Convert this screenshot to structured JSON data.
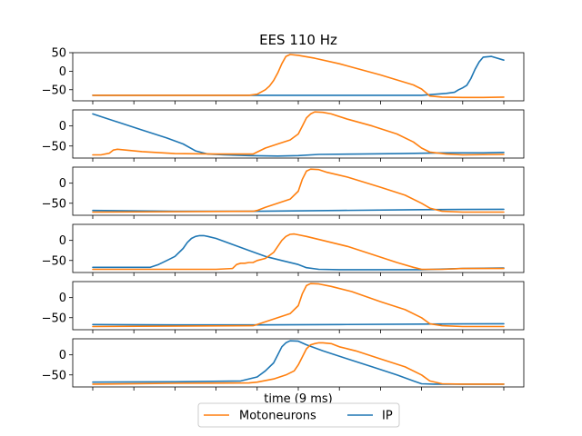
{
  "chart_data": {
    "type": "line",
    "title": "EES 110 Hz",
    "xlabel": "time (9 ms)",
    "ylabel": "",
    "grid": false,
    "legend": {
      "placement": "bottom-center",
      "columns": 2
    },
    "colors": {
      "Motoneurons": "#ff7f0e",
      "IP": "#1f77b4"
    },
    "xlim": [
      0,
      1
    ],
    "panels": [
      {
        "ylim": [
          -80,
          50
        ],
        "yticks": [
          50,
          0,
          -50
        ],
        "yticklabels": [
          "50",
          "0",
          "−50"
        ],
        "series": [
          {
            "name": "Motoneurons",
            "x": [
              0.0,
              0.38,
              0.4,
              0.42,
              0.43,
              0.44,
              0.45,
              0.46,
              0.47,
              0.48,
              0.5,
              0.54,
              0.6,
              0.7,
              0.78,
              0.8,
              0.82,
              0.85,
              0.9,
              0.95,
              1.0
            ],
            "y": [
              -65,
              -65,
              -62,
              -50,
              -40,
              -25,
              -5,
              20,
              40,
              45,
              43,
              35,
              20,
              -10,
              -37,
              -48,
              -67,
              -70,
              -71,
              -71,
              -70
            ]
          },
          {
            "name": "IP",
            "x": [
              0.0,
              0.2,
              0.4,
              0.6,
              0.8,
              0.86,
              0.88,
              0.89,
              0.9,
              0.91,
              0.92,
              0.93,
              0.94,
              0.95,
              0.97,
              1.0
            ],
            "y": [
              -65,
              -65,
              -65,
              -65,
              -65,
              -60,
              -57,
              -50,
              -45,
              -38,
              -20,
              5,
              25,
              38,
              40,
              30
            ]
          }
        ]
      },
      {
        "ylim": [
          -80,
          40
        ],
        "yticks": [
          0,
          -50
        ],
        "yticklabels": [
          "0",
          "−50"
        ],
        "series": [
          {
            "name": "Motoneurons",
            "x": [
              0.0,
              0.02,
              0.04,
              0.05,
              0.06,
              0.08,
              0.12,
              0.2,
              0.3,
              0.39,
              0.4,
              0.42,
              0.45,
              0.48,
              0.5,
              0.51,
              0.52,
              0.53,
              0.54,
              0.56,
              0.58,
              0.62,
              0.68,
              0.74,
              0.78,
              0.8,
              0.82,
              0.86,
              0.9,
              1.0
            ],
            "y": [
              -72,
              -72,
              -68,
              -60,
              -58,
              -60,
              -64,
              -69,
              -70,
              -70,
              -65,
              -55,
              -45,
              -35,
              -20,
              0,
              20,
              30,
              35,
              34,
              30,
              17,
              0,
              -20,
              -40,
              -55,
              -65,
              -70,
              -72,
              -71
            ]
          },
          {
            "name": "IP",
            "x": [
              0.0,
              0.06,
              0.12,
              0.18,
              0.22,
              0.25,
              0.28,
              0.32,
              0.38,
              0.45,
              0.5,
              0.55,
              0.65,
              0.75,
              0.85,
              0.95,
              1.0
            ],
            "y": [
              30,
              10,
              -10,
              -30,
              -45,
              -62,
              -70,
              -72,
              -74,
              -75,
              -74,
              -71,
              -70,
              -69,
              -67,
              -67,
              -66
            ]
          }
        ]
      },
      {
        "ylim": [
          -80,
          40
        ],
        "yticks": [
          0,
          -50
        ],
        "yticklabels": [
          "0",
          "−50"
        ],
        "series": [
          {
            "name": "Motoneurons",
            "x": [
              0.0,
              0.39,
              0.4,
              0.42,
              0.45,
              0.48,
              0.5,
              0.51,
              0.52,
              0.53,
              0.55,
              0.57,
              0.62,
              0.7,
              0.76,
              0.8,
              0.82,
              0.85,
              0.9,
              1.0
            ],
            "y": [
              -72,
              -70,
              -68,
              -60,
              -50,
              -40,
              -20,
              10,
              30,
              35,
              34,
              27,
              15,
              -10,
              -30,
              -50,
              -62,
              -70,
              -72,
              -72
            ]
          },
          {
            "name": "IP",
            "x": [
              0.0,
              0.2,
              0.4,
              0.6,
              0.8,
              1.0
            ],
            "y": [
              -68,
              -70,
              -70,
              -68,
              -66,
              -65
            ]
          }
        ]
      },
      {
        "ylim": [
          -80,
          40
        ],
        "yticks": [
          0,
          -50
        ],
        "yticklabels": [
          "0",
          "−50"
        ],
        "series": [
          {
            "name": "Motoneurons",
            "x": [
              0.0,
              0.3,
              0.34,
              0.35,
              0.36,
              0.37,
              0.38,
              0.39,
              0.4,
              0.42,
              0.44,
              0.45,
              0.46,
              0.47,
              0.48,
              0.49,
              0.5,
              0.52,
              0.56,
              0.62,
              0.68,
              0.74,
              0.78,
              0.8,
              0.82,
              0.85,
              0.9,
              1.0
            ],
            "y": [
              -72,
              -72,
              -70,
              -60,
              -57,
              -57,
              -55,
              -55,
              -50,
              -45,
              -30,
              -15,
              0,
              10,
              15,
              16,
              14,
              10,
              0,
              -15,
              -35,
              -55,
              -67,
              -72,
              -72,
              -72,
              -70,
              -70
            ]
          },
          {
            "name": "IP",
            "x": [
              0.0,
              0.14,
              0.16,
              0.18,
              0.2,
              0.22,
              0.23,
              0.24,
              0.25,
              0.26,
              0.27,
              0.28,
              0.3,
              0.34,
              0.38,
              0.42,
              0.46,
              0.5,
              0.52,
              0.55,
              0.6,
              0.7,
              0.8,
              0.9,
              1.0
            ],
            "y": [
              -67,
              -67,
              -60,
              -50,
              -40,
              -20,
              -5,
              5,
              10,
              12,
              12,
              10,
              5,
              -10,
              -25,
              -40,
              -50,
              -60,
              -68,
              -72,
              -73,
              -73,
              -73,
              -70,
              -69
            ]
          }
        ]
      },
      {
        "ylim": [
          -80,
          40
        ],
        "yticks": [
          0,
          -50
        ],
        "yticklabels": [
          "0",
          "−50"
        ],
        "series": [
          {
            "name": "Motoneurons",
            "x": [
              0.0,
              0.39,
              0.4,
              0.42,
              0.45,
              0.48,
              0.5,
              0.51,
              0.52,
              0.53,
              0.55,
              0.58,
              0.63,
              0.7,
              0.76,
              0.8,
              0.82,
              0.85,
              0.9,
              1.0
            ],
            "y": [
              -72,
              -70,
              -67,
              -60,
              -50,
              -40,
              -20,
              10,
              30,
              35,
              34,
              28,
              15,
              -10,
              -30,
              -50,
              -65,
              -70,
              -72,
              -72
            ]
          },
          {
            "name": "IP",
            "x": [
              0.0,
              0.2,
              0.4,
              0.6,
              0.8,
              1.0
            ],
            "y": [
              -67,
              -68,
              -68,
              -67,
              -66,
              -65
            ]
          }
        ]
      },
      {
        "ylim": [
          -80,
          40
        ],
        "yticks": [
          0,
          -50
        ],
        "yticklabels": [
          "0",
          "−50"
        ],
        "series": [
          {
            "name": "Motoneurons",
            "x": [
              0.0,
              0.2,
              0.38,
              0.4,
              0.44,
              0.47,
              0.49,
              0.5,
              0.51,
              0.52,
              0.53,
              0.54,
              0.55,
              0.56,
              0.58,
              0.6,
              0.64,
              0.7,
              0.76,
              0.8,
              0.82,
              0.85,
              0.9,
              1.0
            ],
            "y": [
              -73,
              -71,
              -70,
              -68,
              -60,
              -50,
              -40,
              -25,
              -5,
              15,
              25,
              28,
              30,
              30,
              28,
              20,
              10,
              -10,
              -30,
              -50,
              -65,
              -72,
              -73,
              -73
            ]
          },
          {
            "name": "IP",
            "x": [
              0.0,
              0.2,
              0.36,
              0.4,
              0.42,
              0.44,
              0.45,
              0.46,
              0.47,
              0.48,
              0.5,
              0.52,
              0.56,
              0.62,
              0.68,
              0.74,
              0.78,
              0.8,
              0.83,
              0.9,
              1.0
            ],
            "y": [
              -68,
              -67,
              -65,
              -55,
              -40,
              -20,
              0,
              20,
              30,
              35,
              34,
              25,
              10,
              -10,
              -30,
              -50,
              -65,
              -72,
              -73,
              -73,
              -73
            ]
          }
        ]
      }
    ],
    "legend_entries": [
      "Motoneurons",
      "IP"
    ]
  }
}
